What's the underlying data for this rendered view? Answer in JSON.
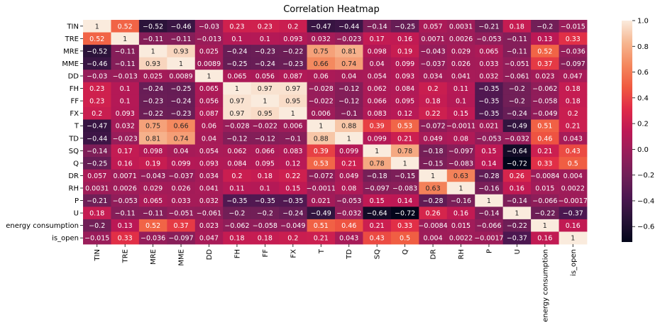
{
  "chart_data": {
    "type": "heatmap",
    "title": "Correlation Heatmap",
    "xlabel": "",
    "ylabel": "",
    "variables": [
      "TIN",
      "TRE",
      "MRE",
      "MME",
      "DD",
      "FH",
      "FF",
      "FX",
      "T",
      "TD",
      "SQ",
      "Q",
      "DR",
      "RH",
      "P",
      "U",
      "energy consumption",
      "is_open"
    ],
    "matrix_labels": [
      [
        "1",
        "0.52",
        "-0.52",
        "-0.46",
        "-0.03",
        "0.23",
        "0.23",
        "0.2",
        "-0.47",
        "-0.44",
        "-0.14",
        "-0.25",
        "0.057",
        "0.0031",
        "-0.21",
        "0.18",
        "-0.2",
        "-0.015"
      ],
      [
        "0.52",
        "1",
        "-0.11",
        "-0.11",
        "-0.013",
        "0.1",
        "0.1",
        "0.093",
        "0.032",
        "-0.023",
        "0.17",
        "0.16",
        "0.0071",
        "0.0026",
        "-0.053",
        "-0.11",
        "0.13",
        "0.33"
      ],
      [
        "-0.52",
        "-0.11",
        "1",
        "0.93",
        "0.025",
        "-0.24",
        "-0.23",
        "-0.22",
        "0.75",
        "0.81",
        "0.098",
        "0.19",
        "-0.043",
        "0.029",
        "0.065",
        "-0.11",
        "0.52",
        "-0.036"
      ],
      [
        "-0.46",
        "-0.11",
        "0.93",
        "1",
        "0.0089",
        "-0.25",
        "-0.24",
        "-0.23",
        "0.66",
        "0.74",
        "0.04",
        "0.099",
        "-0.037",
        "0.026",
        "0.033",
        "-0.051",
        "0.37",
        "-0.097"
      ],
      [
        "-0.03",
        "-0.013",
        "0.025",
        "0.0089",
        "1",
        "0.065",
        "0.056",
        "0.087",
        "0.06",
        "0.04",
        "0.054",
        "0.093",
        "0.034",
        "0.041",
        "0.032",
        "-0.061",
        "0.023",
        "0.047"
      ],
      [
        "0.23",
        "0.1",
        "-0.24",
        "-0.25",
        "0.065",
        "1",
        "0.97",
        "0.97",
        "-0.028",
        "-0.12",
        "0.062",
        "0.084",
        "0.2",
        "0.11",
        "-0.35",
        "-0.2",
        "-0.062",
        "0.18"
      ],
      [
        "0.23",
        "0.1",
        "-0.23",
        "-0.24",
        "0.056",
        "0.97",
        "1",
        "0.95",
        "-0.022",
        "-0.12",
        "0.066",
        "0.095",
        "0.18",
        "0.1",
        "-0.35",
        "-0.2",
        "-0.058",
        "0.18"
      ],
      [
        "0.2",
        "0.093",
        "-0.22",
        "-0.23",
        "0.087",
        "0.97",
        "0.95",
        "1",
        "0.006",
        "-0.1",
        "0.083",
        "0.12",
        "0.22",
        "0.15",
        "-0.35",
        "-0.24",
        "-0.049",
        "0.2"
      ],
      [
        "-0.47",
        "0.032",
        "0.75",
        "0.66",
        "0.06",
        "-0.028",
        "-0.022",
        "0.006",
        "1",
        "0.88",
        "0.39",
        "0.53",
        "-0.072",
        "-0.0011",
        "0.021",
        "-0.49",
        "0.51",
        "0.21"
      ],
      [
        "-0.44",
        "-0.023",
        "0.81",
        "0.74",
        "0.04",
        "-0.12",
        "-0.12",
        "-0.1",
        "0.88",
        "1",
        "0.099",
        "0.21",
        "0.049",
        "0.08",
        "-0.053",
        "-0.032",
        "0.46",
        "0.043"
      ],
      [
        "-0.14",
        "0.17",
        "0.098",
        "0.04",
        "0.054",
        "0.062",
        "0.066",
        "0.083",
        "0.39",
        "0.099",
        "1",
        "0.78",
        "-0.18",
        "-0.097",
        "0.15",
        "-0.64",
        "0.21",
        "0.43"
      ],
      [
        "-0.25",
        "0.16",
        "0.19",
        "0.099",
        "0.093",
        "0.084",
        "0.095",
        "0.12",
        "0.53",
        "0.21",
        "0.78",
        "1",
        "-0.15",
        "-0.083",
        "0.14",
        "-0.72",
        "0.33",
        "0.5"
      ],
      [
        "0.057",
        "0.0071",
        "-0.043",
        "-0.037",
        "0.034",
        "0.2",
        "0.18",
        "0.22",
        "-0.072",
        "0.049",
        "-0.18",
        "-0.15",
        "1",
        "0.63",
        "-0.28",
        "0.26",
        "-0.0084",
        "0.004"
      ],
      [
        "0.0031",
        "0.0026",
        "0.029",
        "0.026",
        "0.041",
        "0.11",
        "0.1",
        "0.15",
        "-0.0011",
        "0.08",
        "-0.097",
        "-0.083",
        "0.63",
        "1",
        "-0.16",
        "0.16",
        "0.015",
        "0.0022"
      ],
      [
        "-0.21",
        "-0.053",
        "0.065",
        "0.033",
        "0.032",
        "-0.35",
        "-0.35",
        "-0.35",
        "0.021",
        "-0.053",
        "0.15",
        "0.14",
        "-0.28",
        "-0.16",
        "1",
        "-0.14",
        "-0.066",
        "-0.0017"
      ],
      [
        "0.18",
        "-0.11",
        "-0.11",
        "-0.051",
        "-0.061",
        "-0.2",
        "-0.2",
        "-0.24",
        "-0.49",
        "-0.032",
        "-0.64",
        "-0.72",
        "0.26",
        "0.16",
        "-0.14",
        "1",
        "-0.22",
        "-0.37"
      ],
      [
        "-0.2",
        "0.13",
        "0.52",
        "0.37",
        "0.023",
        "-0.062",
        "-0.058",
        "-0.049",
        "0.51",
        "0.46",
        "0.21",
        "0.33",
        "-0.0084",
        "0.015",
        "-0.066",
        "-0.22",
        "1",
        "0.16"
      ],
      [
        "-0.015",
        "0.33",
        "-0.036",
        "-0.097",
        "0.047",
        "0.18",
        "0.18",
        "0.2",
        "0.21",
        "0.043",
        "0.43",
        "0.5",
        "0.004",
        "0.0022",
        "-0.0017",
        "-0.37",
        "0.16",
        "1"
      ]
    ],
    "vmin": -0.72,
    "vmax": 1.0,
    "colormap": "rocket",
    "colorbar_ticks": [
      "1.0",
      "0.8",
      "0.6",
      "0.4",
      "0.2",
      "0.0",
      "−0.2",
      "−0.4",
      "−0.6"
    ],
    "colorbar_tick_values": [
      1.0,
      0.8,
      0.6,
      0.4,
      0.2,
      0.0,
      -0.2,
      -0.4,
      -0.6
    ],
    "colorbar_placement": "right",
    "grid": false
  }
}
